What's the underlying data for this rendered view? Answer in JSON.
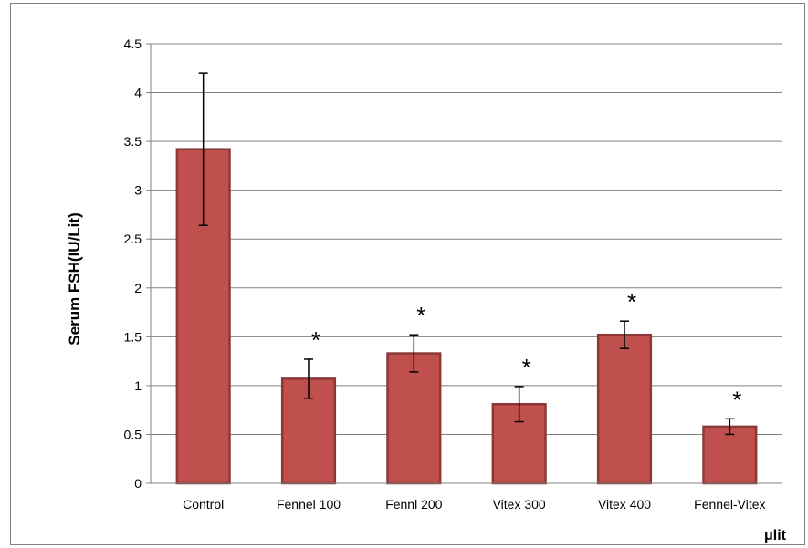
{
  "chart_data": {
    "type": "bar",
    "title": "",
    "ylabel": "Serum FSH(IU/Lit)",
    "xlabel": "μlit",
    "ylim": [
      0,
      4.5
    ],
    "yticks": [
      "0",
      "0.5",
      "1",
      "1.5",
      "2",
      "2.5",
      "3",
      "3.5",
      "4",
      "4.5"
    ],
    "ytick_values": [
      0,
      0.5,
      1,
      1.5,
      2,
      2.5,
      3,
      3.5,
      4,
      4.5
    ],
    "categories": [
      "Control",
      "Fennel 100",
      "Fennl 200",
      "Vitex 300",
      "Vitex 400",
      "Fennel-Vitex"
    ],
    "values": [
      3.42,
      1.07,
      1.33,
      0.81,
      1.52,
      0.58
    ],
    "error": [
      0.78,
      0.2,
      0.19,
      0.18,
      0.14,
      0.08
    ],
    "significance": [
      "",
      "*",
      "*",
      "*",
      "*",
      "*"
    ],
    "grid": true,
    "bar_color": "#c0504d",
    "bar_edge_color": "#8c3836"
  }
}
